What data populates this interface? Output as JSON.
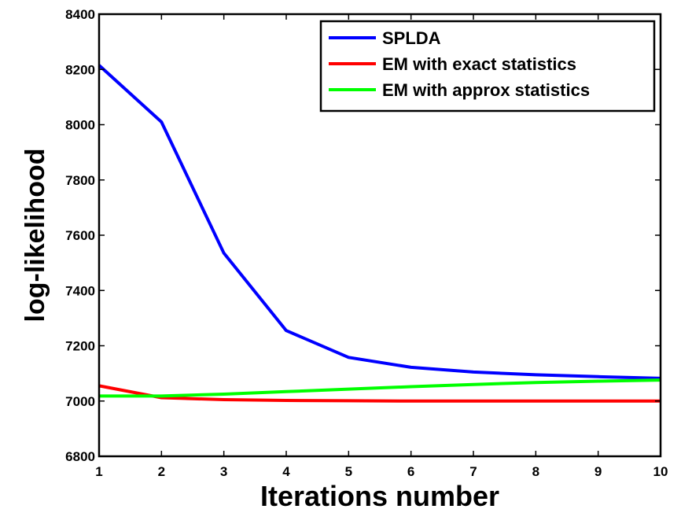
{
  "chart_data": {
    "type": "line",
    "title": "",
    "xlabel": "Iterations number",
    "ylabel": "log-likelihood",
    "x": [
      1,
      2,
      3,
      4,
      5,
      6,
      7,
      8,
      9,
      10
    ],
    "xlim": [
      1,
      10
    ],
    "ylim": [
      6800,
      8400
    ],
    "xticks": [
      "1",
      "2",
      "3",
      "4",
      "5",
      "6",
      "7",
      "8",
      "9",
      "10"
    ],
    "yticks": [
      "6800",
      "7000",
      "7200",
      "7400",
      "7600",
      "7800",
      "8000",
      "8200",
      "8400"
    ],
    "grid": false,
    "legend_position": "top-right",
    "series": [
      {
        "name": "SPLDA",
        "color": "#0000ff",
        "values": [
          8215,
          8010,
          7535,
          7255,
          7158,
          7122,
          7105,
          7095,
          7088,
          7082
        ]
      },
      {
        "name": "EM with exact statistics",
        "color": "#ff0000",
        "values": [
          7055,
          7012,
          7005,
          7002,
          7001,
          7000,
          7000,
          7000,
          7000,
          7000
        ]
      },
      {
        "name": "EM with approx statistics",
        "color": "#00ff00",
        "values": [
          7018,
          7018,
          7025,
          7034,
          7043,
          7052,
          7060,
          7067,
          7072,
          7076
        ]
      }
    ]
  }
}
